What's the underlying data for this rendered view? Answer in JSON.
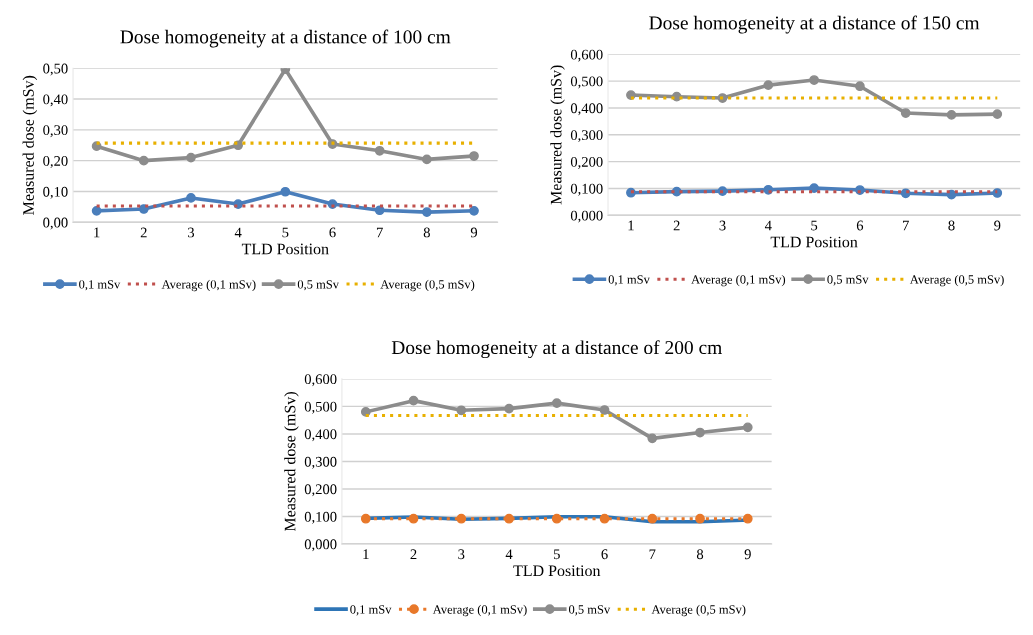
{
  "chart_data": [
    {
      "type": "line",
      "title": "Dose homogeneity at a distance of 100 cm",
      "xlabel": "TLD Position",
      "ylabel": "Measured dose (mSv)",
      "categories": [
        "1",
        "2",
        "3",
        "4",
        "5",
        "6",
        "7",
        "8",
        "9"
      ],
      "ylim": [
        0,
        0.5
      ],
      "yticks": [
        {
          "value": 0,
          "label": "0,00"
        },
        {
          "value": 0.1,
          "label": "0,10"
        },
        {
          "value": 0.2,
          "label": "0,20"
        },
        {
          "value": 0.3,
          "label": "0,30"
        },
        {
          "value": 0.4,
          "label": "0,40"
        },
        {
          "value": 0.5,
          "label": "0,50"
        }
      ],
      "grid": "y",
      "legend": "bottom",
      "series": [
        {
          "name": "0,1 mSv",
          "color": "#4a7ebb",
          "marker": "circle",
          "line_style": "solid",
          "values": [
            0.037,
            0.043,
            0.079,
            0.059,
            0.099,
            0.059,
            0.039,
            0.033,
            0.037
          ]
        },
        {
          "name": "Average (0,1 mSv)",
          "color": "#c0504d",
          "marker": "none",
          "line_style": "dotted",
          "values": [
            0.053,
            0.053,
            0.053,
            0.053,
            0.053,
            0.053,
            0.053,
            0.053,
            0.053
          ]
        },
        {
          "name": "0,5 mSv",
          "color": "#8c8c8c",
          "marker": "circle",
          "line_style": "solid",
          "values": [
            0.247,
            0.2,
            0.21,
            0.25,
            0.497,
            0.254,
            0.232,
            0.204,
            0.215
          ]
        },
        {
          "name": "Average (0,5 mSv)",
          "color": "#e8b000",
          "marker": "none",
          "line_style": "dotted",
          "values": [
            0.257,
            0.257,
            0.257,
            0.257,
            0.257,
            0.257,
            0.257,
            0.257,
            0.257
          ]
        }
      ]
    },
    {
      "type": "line",
      "title": "Dose homogeneity at a distance of 150 cm",
      "xlabel": "TLD Position",
      "ylabel": "Measured dose (mSv)",
      "categories": [
        "1",
        "2",
        "3",
        "4",
        "5",
        "6",
        "7",
        "8",
        "9"
      ],
      "ylim": [
        0,
        0.6
      ],
      "yticks": [
        {
          "value": 0,
          "label": "0,000"
        },
        {
          "value": 0.1,
          "label": "0,100"
        },
        {
          "value": 0.2,
          "label": "0,200"
        },
        {
          "value": 0.3,
          "label": "0,300"
        },
        {
          "value": 0.4,
          "label": "0,400"
        },
        {
          "value": 0.5,
          "label": "0,500"
        },
        {
          "value": 0.6,
          "label": "0,600"
        }
      ],
      "grid": "y",
      "legend": "bottom",
      "series": [
        {
          "name": "0,1 mSv",
          "color": "#4a7ebb",
          "marker": "circle",
          "line_style": "solid",
          "values": [
            0.084,
            0.088,
            0.09,
            0.095,
            0.101,
            0.094,
            0.082,
            0.077,
            0.083
          ]
        },
        {
          "name": "Average (0,1 mSv)",
          "color": "#c0504d",
          "marker": "none",
          "line_style": "dotted",
          "values": [
            0.088,
            0.088,
            0.088,
            0.088,
            0.088,
            0.088,
            0.088,
            0.088,
            0.088
          ]
        },
        {
          "name": "0,5 mSv",
          "color": "#8c8c8c",
          "marker": "circle",
          "line_style": "solid",
          "values": [
            0.448,
            0.442,
            0.437,
            0.485,
            0.504,
            0.481,
            0.381,
            0.374,
            0.377
          ]
        },
        {
          "name": "Average (0,5 mSv)",
          "color": "#e8b000",
          "marker": "none",
          "line_style": "dotted",
          "values": [
            0.437,
            0.437,
            0.437,
            0.437,
            0.437,
            0.437,
            0.437,
            0.437,
            0.437
          ]
        }
      ]
    },
    {
      "type": "line",
      "title": "Dose homogeneity at a distance of 200 cm",
      "xlabel": "TLD Position",
      "ylabel": "Measured dose (mSv)",
      "categories": [
        "1",
        "2",
        "3",
        "4",
        "5",
        "6",
        "7",
        "8",
        "9"
      ],
      "ylim": [
        0,
        0.6
      ],
      "yticks": [
        {
          "value": 0,
          "label": "0,000"
        },
        {
          "value": 0.1,
          "label": "0,100"
        },
        {
          "value": 0.2,
          "label": "0,200"
        },
        {
          "value": 0.3,
          "label": "0,300"
        },
        {
          "value": 0.4,
          "label": "0,400"
        },
        {
          "value": 0.5,
          "label": "0,500"
        },
        {
          "value": 0.6,
          "label": "0,600"
        }
      ],
      "grid": "y",
      "legend": "bottom",
      "series": [
        {
          "name": "0,1 mSv",
          "color": "#2e75b6",
          "marker": "none",
          "line_style": "solid",
          "values": [
            0.093,
            0.098,
            0.09,
            0.093,
            0.099,
            0.099,
            0.081,
            0.081,
            0.087
          ]
        },
        {
          "name": "Average (0,1 mSv)",
          "color": "#e8782a",
          "marker": "circle",
          "line_style": "dotted",
          "values": [
            0.092,
            0.092,
            0.092,
            0.092,
            0.092,
            0.092,
            0.092,
            0.092,
            0.092
          ]
        },
        {
          "name": "0,5 mSv",
          "color": "#8c8c8c",
          "marker": "circle",
          "line_style": "solid",
          "values": [
            0.48,
            0.521,
            0.486,
            0.492,
            0.512,
            0.487,
            0.384,
            0.405,
            0.424
          ]
        },
        {
          "name": "Average (0,5 mSv)",
          "color": "#e8b000",
          "marker": "none",
          "line_style": "dotted",
          "values": [
            0.467,
            0.467,
            0.467,
            0.467,
            0.467,
            0.467,
            0.467,
            0.467,
            0.467
          ]
        }
      ]
    }
  ]
}
